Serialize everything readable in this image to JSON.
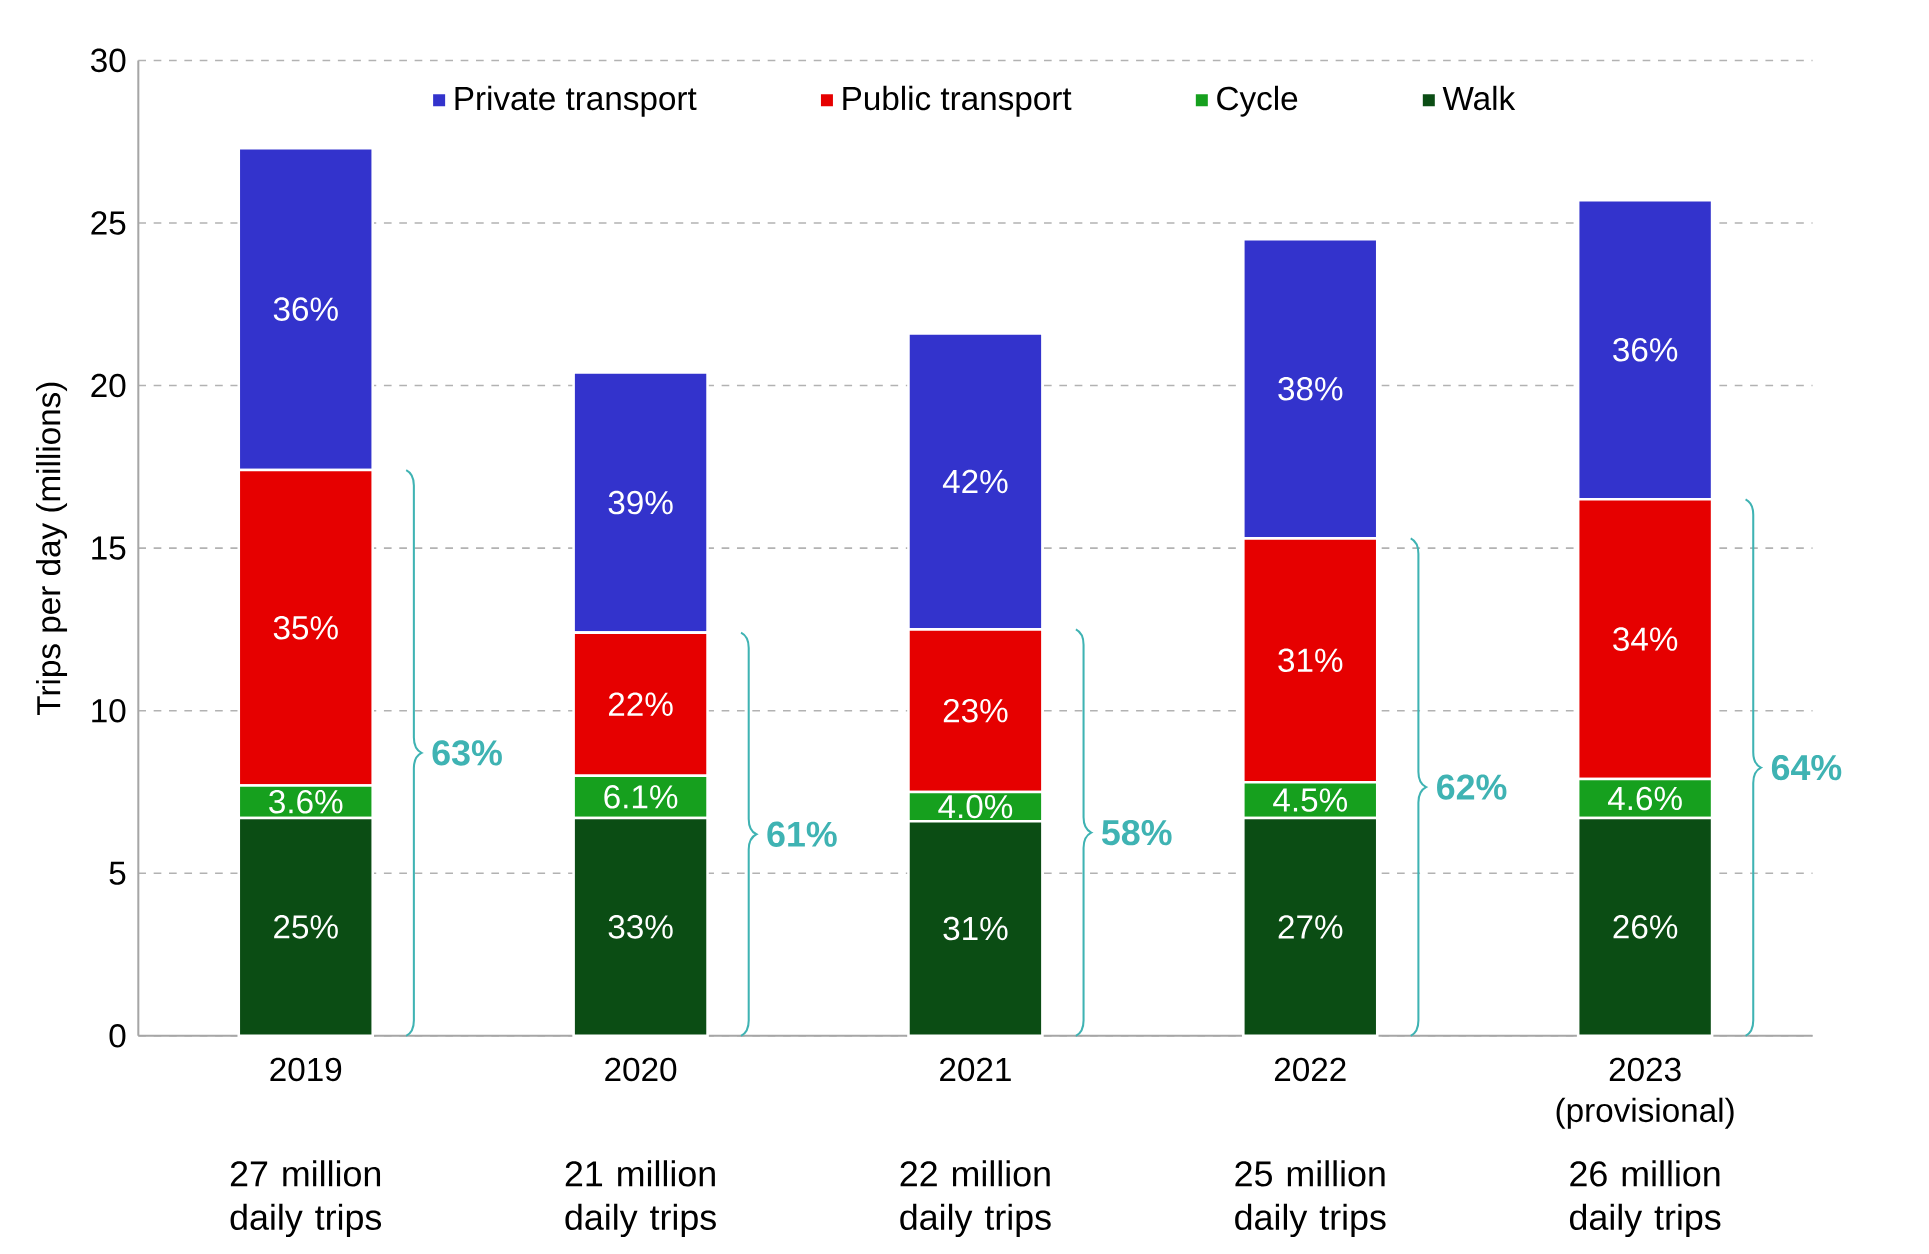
{
  "chart_data": {
    "type": "bar",
    "stacked": true,
    "ylabel": "Trips per day (millions)",
    "categories": [
      "2019",
      "2020",
      "2021",
      "2022",
      "2023 (provisional)"
    ],
    "series": [
      {
        "name": "Walk",
        "color": "#0b4d14",
        "values": [
          6.7,
          6.7,
          6.6,
          6.7,
          6.7
        ]
      },
      {
        "name": "Cycle",
        "color": "#16a01e",
        "values": [
          1.0,
          1.3,
          0.9,
          1.1,
          1.2
        ]
      },
      {
        "name": "Public transport",
        "color": "#e60000",
        "values": [
          9.7,
          4.4,
          5.0,
          7.5,
          8.6
        ]
      },
      {
        "name": "Private transport",
        "color": "#3333cc",
        "values": [
          9.9,
          8.0,
          9.1,
          9.2,
          9.2
        ]
      }
    ],
    "ylim": [
      0,
      30
    ],
    "yticks": [
      0,
      5,
      10,
      15,
      20,
      25,
      30
    ],
    "grid": "y",
    "legend": "top",
    "annotations": [
      "63%",
      "61%",
      "58%",
      "62%",
      "64%",
      "27 million daily trips",
      "21 million daily trips",
      "22 million daily trips",
      "25 million daily trips",
      "26 million daily trips",
      "25%",
      "33%",
      "31%",
      "27%",
      "26%",
      "3.6%",
      "6.1%",
      "4.0%",
      "4.5%",
      "4.6%",
      "35%",
      "22%",
      "23%",
      "31%",
      "34%",
      "36%",
      "39%",
      "42%",
      "38%",
      "36%"
    ]
  }
}
